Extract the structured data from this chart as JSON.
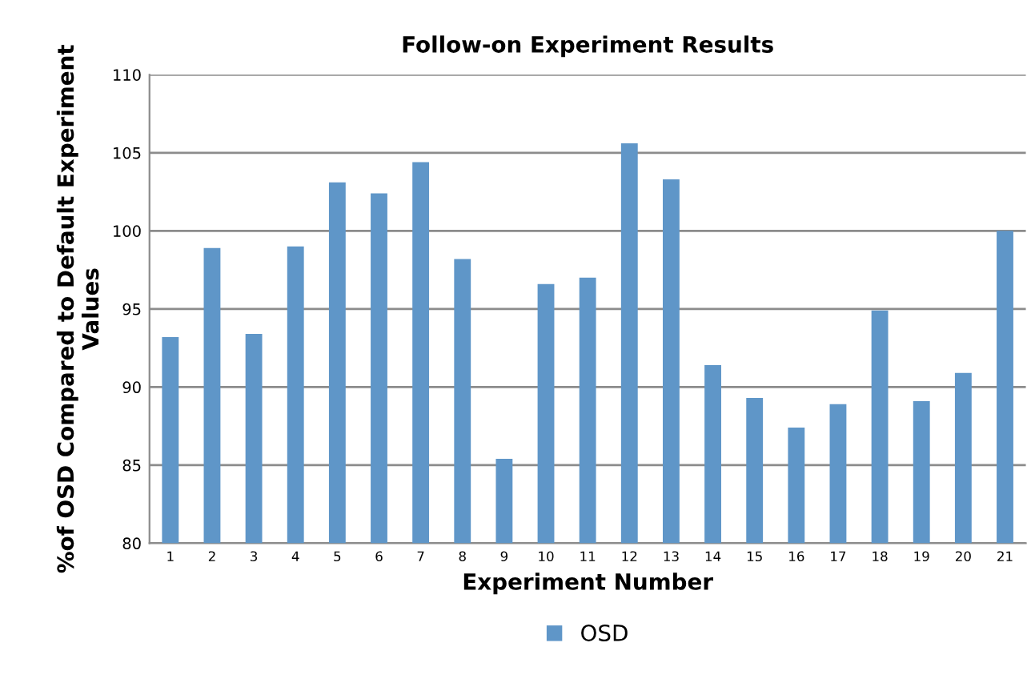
{
  "chart_data": {
    "type": "bar",
    "title": "Follow-on Experiment Results",
    "xlabel": "Experiment Number",
    "ylabel": "%of OSD Compared to Default Experiment Values",
    "categories": [
      "1",
      "2",
      "3",
      "4",
      "5",
      "6",
      "7",
      "8",
      "9",
      "10",
      "11",
      "12",
      "13",
      "14",
      "15",
      "16",
      "17",
      "18",
      "19",
      "20",
      "21"
    ],
    "series": [
      {
        "name": "OSD",
        "color": "#5f96c8",
        "values": [
          93.2,
          98.9,
          93.4,
          99.0,
          103.1,
          102.4,
          104.4,
          98.2,
          85.4,
          96.6,
          97.0,
          105.6,
          103.3,
          91.4,
          89.3,
          87.4,
          88.9,
          94.9,
          89.1,
          90.9,
          100.0
        ]
      }
    ],
    "ylim": [
      80,
      110
    ],
    "yticks": [
      80,
      85,
      90,
      95,
      100,
      105,
      110
    ],
    "grid": "y",
    "legend": "bottom"
  }
}
